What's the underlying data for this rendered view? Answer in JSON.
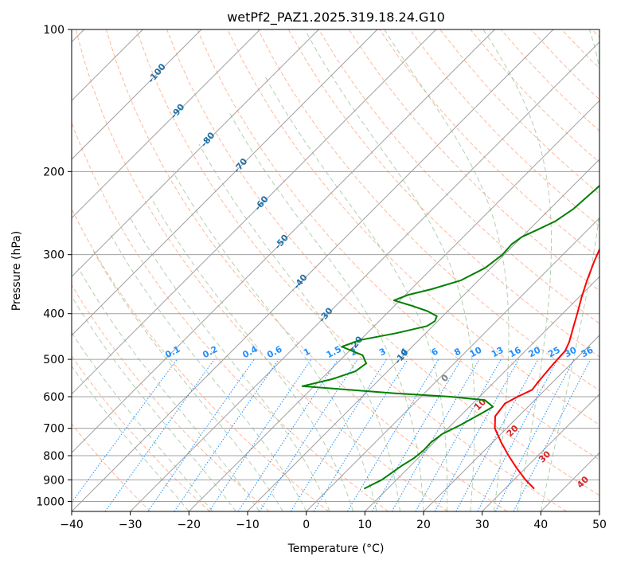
{
  "chart_data": {
    "type": "line",
    "title": "wetPf2_PAZ1.2025.319.18.24.G10",
    "xlabel": "Temperature (°C)",
    "ylabel": "Pressure (hPa)",
    "xlim": [
      -40,
      50
    ],
    "ylim": [
      1050,
      100
    ],
    "y_scale": "log",
    "grid": true,
    "x_ticks": [
      "−40",
      "−30",
      "−20",
      "−10",
      "0",
      "10",
      "20",
      "30",
      "40",
      "50"
    ],
    "y_ticks": [
      "100",
      "200",
      "300",
      "400",
      "500",
      "600",
      "700",
      "800",
      "900",
      "1000"
    ],
    "series": [
      {
        "color": "#ff0000",
        "points": [
          [
            35,
            940
          ],
          [
            32,
            900
          ],
          [
            28.5,
            850
          ],
          [
            25,
            800
          ],
          [
            21.5,
            750
          ],
          [
            18,
            700
          ],
          [
            16,
            660
          ],
          [
            15.5,
            620
          ],
          [
            16.5,
            600
          ],
          [
            17.8,
            580
          ],
          [
            17.5,
            560
          ],
          [
            17.3,
            540
          ],
          [
            17,
            510
          ],
          [
            16.8,
            480
          ],
          [
            16,
            460
          ],
          [
            14.3,
            430
          ],
          [
            12.5,
            400
          ],
          [
            10.5,
            370
          ],
          [
            8.5,
            340
          ],
          [
            6.5,
            310
          ],
          [
            4.5,
            280
          ],
          [
            2,
            245
          ],
          [
            0,
            220
          ],
          [
            -0.5,
            200
          ],
          [
            -0.3,
            185
          ],
          [
            0.5,
            165
          ],
          [
            1.5,
            150
          ],
          [
            2.5,
            140
          ],
          [
            4.5,
            125
          ],
          [
            6,
            118
          ],
          [
            6.5,
            110
          ],
          [
            6.6,
            100
          ]
        ]
      },
      {
        "color": "#008000",
        "points": [
          [
            6,
            940
          ],
          [
            7.5,
            900
          ],
          [
            8,
            870
          ],
          [
            8.5,
            840
          ],
          [
            9.3,
            810
          ],
          [
            9.6,
            780
          ],
          [
            9.5,
            750
          ],
          [
            10,
            720
          ],
          [
            11.5,
            690
          ],
          [
            13.2,
            650
          ],
          [
            14,
            630
          ],
          [
            11.5,
            610
          ],
          [
            5,
            600
          ],
          [
            -5,
            590
          ],
          [
            -22,
            570
          ],
          [
            -18,
            550
          ],
          [
            -15.5,
            530
          ],
          [
            -15,
            510
          ],
          [
            -17,
            490
          ],
          [
            -22,
            470
          ],
          [
            -20,
            455
          ],
          [
            -15,
            440
          ],
          [
            -11,
            425
          ],
          [
            -10.5,
            415
          ],
          [
            -11,
            405
          ],
          [
            -13.5,
            395
          ],
          [
            -17,
            385
          ],
          [
            -21,
            375
          ],
          [
            -19.5,
            365
          ],
          [
            -16.5,
            355
          ],
          [
            -13,
            340
          ],
          [
            -11,
            320
          ],
          [
            -10.3,
            300
          ],
          [
            -10.5,
            285
          ],
          [
            -10,
            275
          ],
          [
            -8.5,
            265
          ],
          [
            -7,
            255
          ],
          [
            -6,
            240
          ],
          [
            -5.5,
            215
          ],
          [
            -6,
            200
          ],
          [
            -7,
            190
          ],
          [
            -9,
            183
          ],
          [
            -10,
            178
          ],
          [
            -9.5,
            172
          ],
          [
            -7.5,
            165
          ],
          [
            -5.5,
            150
          ],
          [
            -3.5,
            135
          ],
          [
            -2,
            125
          ],
          [
            0,
            115
          ],
          [
            2,
            108
          ],
          [
            3.3,
            100
          ]
        ]
      }
    ],
    "mixing_ratio_labels": [
      "0.1",
      "0.2",
      "0.4",
      "0.6",
      "1",
      "1.5",
      "2",
      "3",
      "4",
      "6",
      "8",
      "10",
      "13",
      "16",
      "20",
      "25",
      "30",
      "36"
    ],
    "dry_adiabat_labels": [
      "-100",
      "-90",
      "-80",
      "-70",
      "-60",
      "-50",
      "-40",
      "-30",
      "-20",
      "-10"
    ],
    "moist_adiabat_labels": [
      "0",
      "10",
      "20",
      "30",
      "40"
    ]
  },
  "colors": {
    "temperature": "#ff0000",
    "dewpoint": "#008000",
    "isotherm": "#a0a0a0",
    "dry_adiabat": "#ffa07a",
    "moist_adiabat": "#8fbc8f",
    "mixing_ratio": "#1e90ff",
    "dry_label": "#1f6fa8",
    "moist_label": "#d62728",
    "zero_label": "#7f7f7f"
  }
}
